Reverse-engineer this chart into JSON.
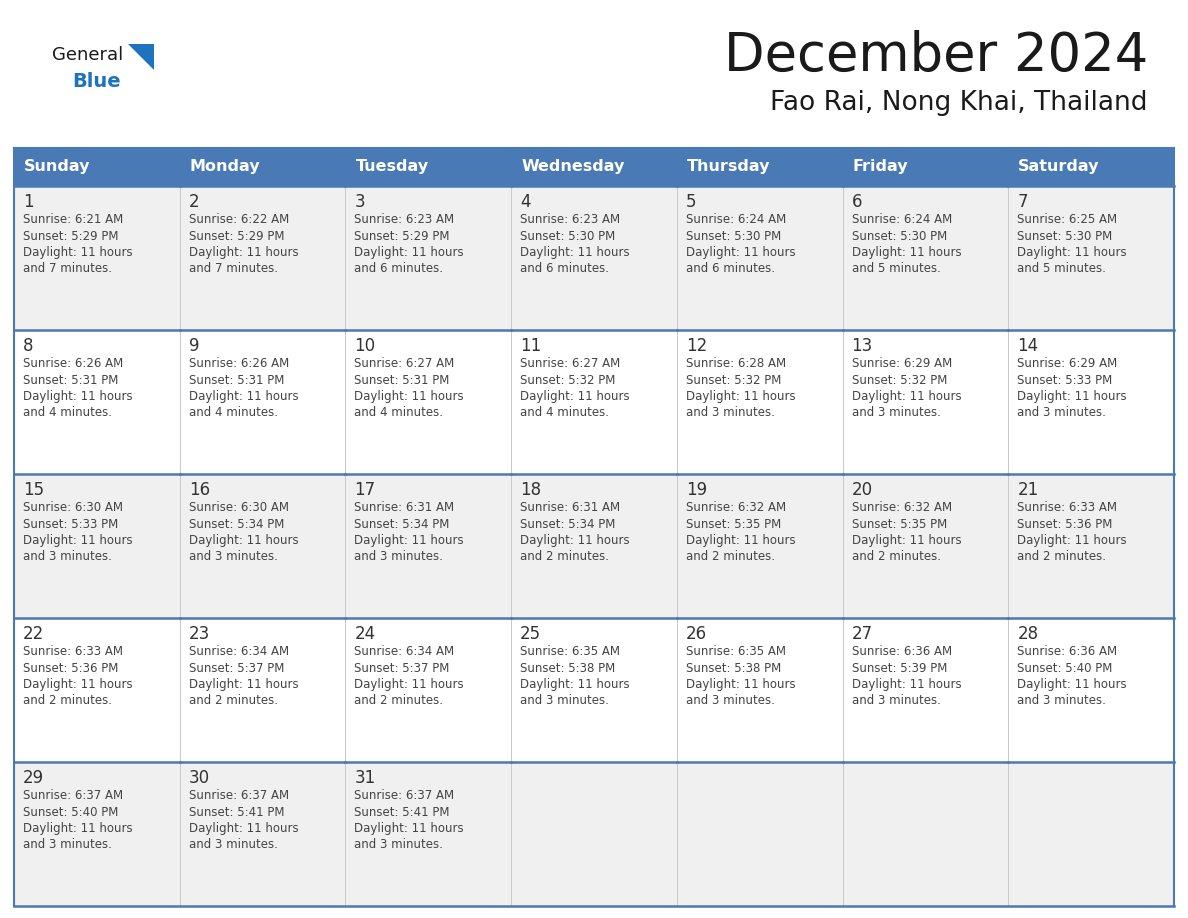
{
  "title": "December 2024",
  "subtitle": "Fao Rai, Nong Khai, Thailand",
  "days_of_week": [
    "Sunday",
    "Monday",
    "Tuesday",
    "Wednesday",
    "Thursday",
    "Friday",
    "Saturday"
  ],
  "header_bg": "#4a7ab5",
  "header_text": "#ffffff",
  "cell_bg_odd": "#f0f0f0",
  "cell_bg_even": "#ffffff",
  "cell_border_color": "#4a7ab5",
  "cell_grid_color": "#c8c8c8",
  "title_color": "#1a1a1a",
  "subtitle_color": "#1a1a1a",
  "day_num_color": "#333333",
  "cell_text_color": "#444444",
  "logo_text_color": "#1a1a1a",
  "logo_blue_color": "#1e72be",
  "logo_triangle_color": "#1e72be",
  "calendar_data": [
    [
      {
        "day": 1,
        "sunrise": "6:21 AM",
        "sunset": "5:29 PM",
        "daylight": "11 hours and 7 minutes."
      },
      {
        "day": 2,
        "sunrise": "6:22 AM",
        "sunset": "5:29 PM",
        "daylight": "11 hours and 7 minutes."
      },
      {
        "day": 3,
        "sunrise": "6:23 AM",
        "sunset": "5:29 PM",
        "daylight": "11 hours and 6 minutes."
      },
      {
        "day": 4,
        "sunrise": "6:23 AM",
        "sunset": "5:30 PM",
        "daylight": "11 hours and 6 minutes."
      },
      {
        "day": 5,
        "sunrise": "6:24 AM",
        "sunset": "5:30 PM",
        "daylight": "11 hours and 6 minutes."
      },
      {
        "day": 6,
        "sunrise": "6:24 AM",
        "sunset": "5:30 PM",
        "daylight": "11 hours and 5 minutes."
      },
      {
        "day": 7,
        "sunrise": "6:25 AM",
        "sunset": "5:30 PM",
        "daylight": "11 hours and 5 minutes."
      }
    ],
    [
      {
        "day": 8,
        "sunrise": "6:26 AM",
        "sunset": "5:31 PM",
        "daylight": "11 hours and 4 minutes."
      },
      {
        "day": 9,
        "sunrise": "6:26 AM",
        "sunset": "5:31 PM",
        "daylight": "11 hours and 4 minutes."
      },
      {
        "day": 10,
        "sunrise": "6:27 AM",
        "sunset": "5:31 PM",
        "daylight": "11 hours and 4 minutes."
      },
      {
        "day": 11,
        "sunrise": "6:27 AM",
        "sunset": "5:32 PM",
        "daylight": "11 hours and 4 minutes."
      },
      {
        "day": 12,
        "sunrise": "6:28 AM",
        "sunset": "5:32 PM",
        "daylight": "11 hours and 3 minutes."
      },
      {
        "day": 13,
        "sunrise": "6:29 AM",
        "sunset": "5:32 PM",
        "daylight": "11 hours and 3 minutes."
      },
      {
        "day": 14,
        "sunrise": "6:29 AM",
        "sunset": "5:33 PM",
        "daylight": "11 hours and 3 minutes."
      }
    ],
    [
      {
        "day": 15,
        "sunrise": "6:30 AM",
        "sunset": "5:33 PM",
        "daylight": "11 hours and 3 minutes."
      },
      {
        "day": 16,
        "sunrise": "6:30 AM",
        "sunset": "5:34 PM",
        "daylight": "11 hours and 3 minutes."
      },
      {
        "day": 17,
        "sunrise": "6:31 AM",
        "sunset": "5:34 PM",
        "daylight": "11 hours and 3 minutes."
      },
      {
        "day": 18,
        "sunrise": "6:31 AM",
        "sunset": "5:34 PM",
        "daylight": "11 hours and 2 minutes."
      },
      {
        "day": 19,
        "sunrise": "6:32 AM",
        "sunset": "5:35 PM",
        "daylight": "11 hours and 2 minutes."
      },
      {
        "day": 20,
        "sunrise": "6:32 AM",
        "sunset": "5:35 PM",
        "daylight": "11 hours and 2 minutes."
      },
      {
        "day": 21,
        "sunrise": "6:33 AM",
        "sunset": "5:36 PM",
        "daylight": "11 hours and 2 minutes."
      }
    ],
    [
      {
        "day": 22,
        "sunrise": "6:33 AM",
        "sunset": "5:36 PM",
        "daylight": "11 hours and 2 minutes."
      },
      {
        "day": 23,
        "sunrise": "6:34 AM",
        "sunset": "5:37 PM",
        "daylight": "11 hours and 2 minutes."
      },
      {
        "day": 24,
        "sunrise": "6:34 AM",
        "sunset": "5:37 PM",
        "daylight": "11 hours and 2 minutes."
      },
      {
        "day": 25,
        "sunrise": "6:35 AM",
        "sunset": "5:38 PM",
        "daylight": "11 hours and 3 minutes."
      },
      {
        "day": 26,
        "sunrise": "6:35 AM",
        "sunset": "5:38 PM",
        "daylight": "11 hours and 3 minutes."
      },
      {
        "day": 27,
        "sunrise": "6:36 AM",
        "sunset": "5:39 PM",
        "daylight": "11 hours and 3 minutes."
      },
      {
        "day": 28,
        "sunrise": "6:36 AM",
        "sunset": "5:40 PM",
        "daylight": "11 hours and 3 minutes."
      }
    ],
    [
      {
        "day": 29,
        "sunrise": "6:37 AM",
        "sunset": "5:40 PM",
        "daylight": "11 hours and 3 minutes."
      },
      {
        "day": 30,
        "sunrise": "6:37 AM",
        "sunset": "5:41 PM",
        "daylight": "11 hours and 3 minutes."
      },
      {
        "day": 31,
        "sunrise": "6:37 AM",
        "sunset": "5:41 PM",
        "daylight": "11 hours and 3 minutes."
      },
      null,
      null,
      null,
      null
    ]
  ]
}
